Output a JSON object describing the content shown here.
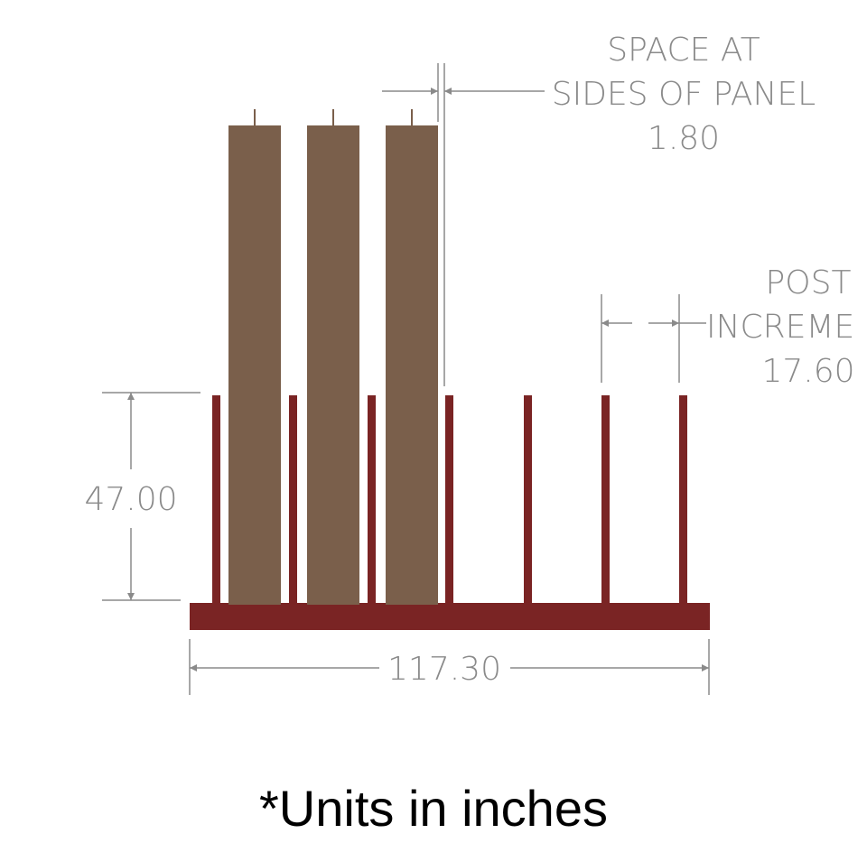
{
  "colors": {
    "base": "#7a2424",
    "post": "#7a2424",
    "panel": "#7a5f4b",
    "dimension": "#8a8a8a"
  },
  "dimensions": {
    "panel_spacing": {
      "label_line1": "SPACE AT",
      "label_line2": "SIDES OF PANEL",
      "value": "1.80"
    },
    "post_increment": {
      "label_line1": "POST",
      "label_line2": "INCREME",
      "value": "17.60"
    },
    "height": {
      "value": "47.00"
    },
    "width": {
      "value": "117.30"
    }
  },
  "note": "*Units in inches"
}
